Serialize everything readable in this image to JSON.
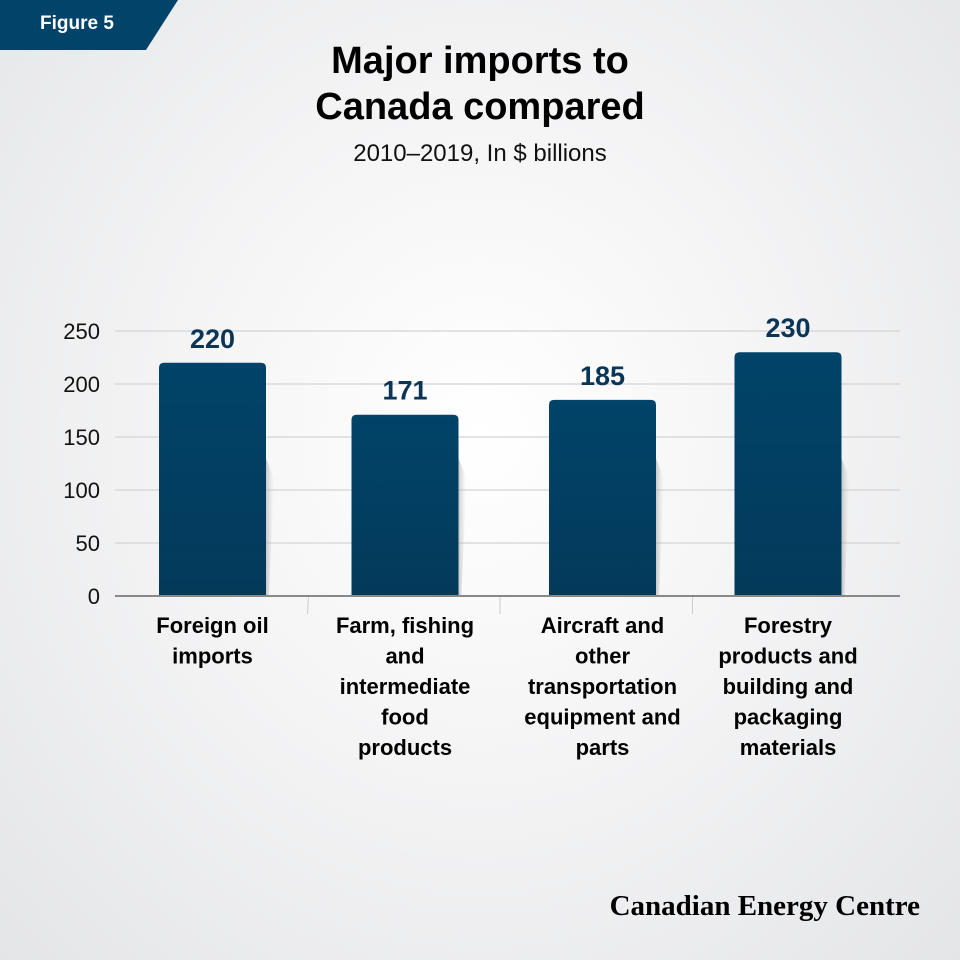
{
  "figure_label": "Figure 5",
  "brand": "Canadian Energy Centre",
  "colors": {
    "bar": "#014369",
    "tag": "#014369",
    "value_label": "#0b3556"
  },
  "chart_data": {
    "type": "bar",
    "title": "Major imports to Canada compared",
    "title_lines": [
      "Major imports to",
      "Canada compared"
    ],
    "subtitle": "2010–2019, In $ billions",
    "categories": [
      [
        "Foreign oil",
        "imports"
      ],
      [
        "Farm, fishing",
        "and",
        "intermediate",
        "food",
        "products"
      ],
      [
        "Aircraft and",
        "other",
        "transportation",
        "equipment and",
        "parts"
      ],
      [
        "Forestry",
        "products and",
        "building and",
        "packaging",
        "materials"
      ]
    ],
    "values": [
      220,
      171,
      185,
      230
    ],
    "data_labels": [
      "220",
      "171",
      "185",
      "230"
    ],
    "ylim": [
      0,
      250
    ],
    "yticks": [
      "0",
      "50",
      "100",
      "150",
      "200",
      "250"
    ],
    "grid": true,
    "legend": "none"
  }
}
